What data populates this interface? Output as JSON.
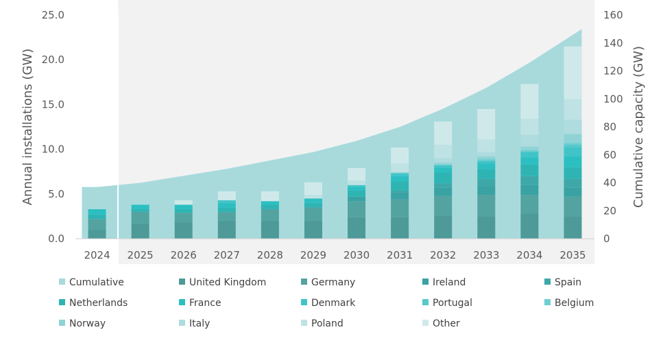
{
  "chart_data": {
    "type": "bar",
    "categories": [
      "2024",
      "2025",
      "2026",
      "2027",
      "2028",
      "2029",
      "2030",
      "2031",
      "2032",
      "2033",
      "2034",
      "2035"
    ],
    "highlight_category": "2024",
    "ylabel": "Annual installations (GW)",
    "y2label": "Cumulative capacity (GW)",
    "ylim": [
      0,
      25
    ],
    "y2lim": [
      0,
      160
    ],
    "yticks": [
      "0.0",
      "5.0",
      "10.0",
      "15.0",
      "20.0",
      "25.0"
    ],
    "y2ticks": [
      "0",
      "20",
      "40",
      "60",
      "80",
      "100",
      "120",
      "140",
      "160"
    ],
    "grid": false,
    "legend_position": "bottom",
    "cumulative": {
      "name": "Cumulative",
      "color": "#a8dadc",
      "values": [
        37,
        40,
        45,
        50,
        56,
        62,
        70,
        80,
        93,
        108,
        126,
        150
      ]
    },
    "series": [
      {
        "name": "United Kingdom",
        "color": "#4e9a98",
        "values": [
          1.0,
          1.7,
          1.8,
          2.0,
          2.0,
          2.0,
          2.4,
          2.4,
          2.6,
          2.5,
          2.8,
          2.5
        ]
      },
      {
        "name": "Germany",
        "color": "#53a3a1",
        "values": [
          1.2,
          1.3,
          1.1,
          1.0,
          1.3,
          1.5,
          1.8,
          2.0,
          2.2,
          2.4,
          2.1,
          2.2
        ]
      },
      {
        "name": "Ireland",
        "color": "#3aa2a3",
        "values": [
          0.0,
          0.0,
          0.0,
          0.0,
          0.0,
          0.0,
          0.5,
          0.8,
          0.9,
          1.0,
          1.1,
          1.0
        ]
      },
      {
        "name": "Spain",
        "color": "#3ea8a8",
        "values": [
          0.0,
          0.0,
          0.0,
          0.0,
          0.0,
          0.0,
          0.0,
          0.2,
          0.5,
          0.8,
          1.0,
          1.0
        ]
      },
      {
        "name": "Netherlands",
        "color": "#2fb4b4",
        "values": [
          0.5,
          0.3,
          0.4,
          0.5,
          0.5,
          0.5,
          0.7,
          1.0,
          1.2,
          1.1,
          1.3,
          1.3
        ]
      },
      {
        "name": "France",
        "color": "#2cbfc1",
        "values": [
          0.6,
          0.5,
          0.5,
          0.5,
          0.4,
          0.5,
          0.4,
          0.6,
          0.5,
          0.6,
          0.8,
          1.2
        ]
      },
      {
        "name": "Denmark",
        "color": "#41c4c7",
        "values": [
          0.0,
          0.0,
          0.0,
          0.3,
          0.0,
          0.0,
          0.2,
          0.3,
          0.3,
          0.3,
          0.6,
          1.0
        ]
      },
      {
        "name": "Portugal",
        "color": "#55c9cc",
        "values": [
          0.0,
          0.0,
          0.0,
          0.0,
          0.0,
          0.0,
          0.0,
          0.0,
          0.0,
          0.0,
          0.0,
          0.3
        ]
      },
      {
        "name": "Belgium",
        "color": "#6ecfd1",
        "values": [
          0.0,
          0.0,
          0.0,
          0.0,
          0.0,
          0.0,
          0.0,
          0.1,
          0.1,
          0.2,
          0.2,
          0.2
        ]
      },
      {
        "name": "Norway",
        "color": "#8fd3d6",
        "values": [
          0.0,
          0.0,
          0.0,
          0.0,
          0.0,
          0.0,
          0.0,
          0.0,
          0.2,
          0.3,
          0.4,
          1.0
        ]
      },
      {
        "name": "Italy",
        "color": "#afdcdf",
        "values": [
          0.0,
          0.0,
          0.0,
          0.0,
          0.0,
          0.0,
          0.0,
          0.0,
          0.5,
          0.5,
          1.3,
          1.6
        ]
      },
      {
        "name": "Poland",
        "color": "#bfe2e4",
        "values": [
          0.0,
          0.0,
          0.0,
          0.0,
          0.0,
          0.4,
          0.5,
          1.0,
          1.5,
          1.4,
          1.8,
          2.3
        ]
      },
      {
        "name": "Other",
        "color": "#cfe9ea",
        "values": [
          0.0,
          0.0,
          0.5,
          1.0,
          1.1,
          1.4,
          1.4,
          1.8,
          2.6,
          3.4,
          3.9,
          5.9
        ]
      }
    ]
  }
}
